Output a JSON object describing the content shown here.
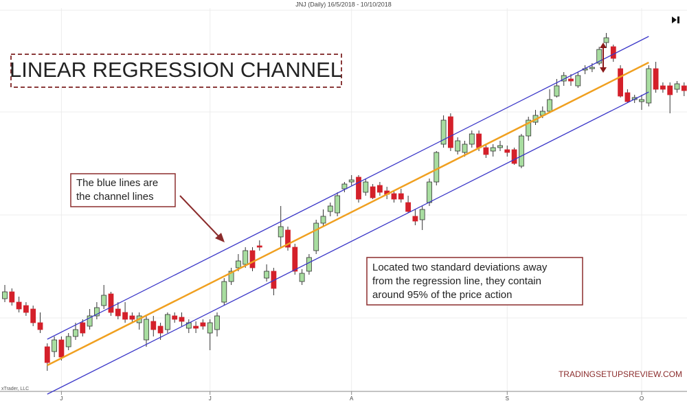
{
  "chart_data": {
    "type": "candlestick",
    "title": "JNJ (Daily)  16/5/2018 - 10/10/2018",
    "heading": "LINEAR REGRESSION CHANNEL",
    "annotations": [
      "The blue lines are",
      "the channel lines",
      "Located two standard deviations away",
      "from the regression line, they contain",
      "around 95% of the price action"
    ],
    "watermark": "TRADINGSETUPSREVIEW.COM",
    "copyright": "xTrader, LLC",
    "up_color": "#a8dda0",
    "down_color": "#d4202a",
    "channel_color": "#3a36c8",
    "regression_color": "#f0a020",
    "ylim": [
      0,
      60
    ],
    "categories": [
      null,
      null,
      null,
      null,
      null,
      null,
      null,
      null,
      "J",
      null,
      null,
      null,
      null,
      null,
      null,
      null,
      null,
      null,
      null,
      null,
      null,
      null,
      null,
      null,
      null,
      null,
      null,
      null,
      null,
      "J",
      null,
      null,
      null,
      null,
      null,
      null,
      null,
      null,
      null,
      null,
      null,
      null,
      null,
      null,
      null,
      null,
      null,
      null,
      null,
      "A",
      null,
      null,
      null,
      null,
      null,
      null,
      null,
      null,
      null,
      null,
      null,
      null,
      null,
      null,
      null,
      null,
      null,
      null,
      null,
      null,
      null,
      "S",
      null,
      null,
      null,
      null,
      null,
      null,
      null,
      null,
      null,
      null,
      null,
      null,
      null,
      null,
      null,
      null,
      null,
      null,
      "O",
      null,
      null,
      null,
      null,
      null,
      null
    ],
    "open": [
      16.5,
      17.5,
      16,
      15.5,
      15,
      13,
      9.5,
      8.8,
      10.5,
      9.5,
      11,
      13,
      12.5,
      14,
      15.5,
      17.2,
      15,
      14.5,
      14,
      13,
      10.5,
      13.2,
      12.5,
      12,
      14,
      13.8,
      12.2,
      12.5,
      13,
      11.5,
      12,
      16,
      19,
      21,
      21.5,
      23.5,
      24.2,
      19.5,
      20.5,
      25.5,
      26.5,
      24,
      19,
      20.5,
      23.5,
      27.5,
      29.2,
      29,
      32.5,
      33.5,
      34.2,
      32,
      32.8,
      33,
      32.2,
      31.8,
      31.8,
      30.5,
      28.5,
      28,
      30.5,
      33.5,
      39,
      43,
      38,
      37.8,
      39,
      40.5,
      38.5,
      38,
      38.5,
      38.2,
      38.2,
      35.8,
      40.2,
      42.2,
      43.2,
      43.8,
      46,
      48.2,
      48.5,
      47.5,
      49.8,
      50,
      50.8,
      53.8,
      53.2,
      50,
      46.5,
      45.5,
      45.2,
      45,
      50,
      47.5,
      47.5,
      47,
      47.5
    ],
    "high": [
      18.5,
      18,
      16.8,
      16,
      15.5,
      14.5,
      10,
      11,
      11,
      11.5,
      13,
      13.5,
      15,
      16,
      18.5,
      17.5,
      16,
      16,
      14.5,
      14.5,
      14,
      14,
      13,
      14.5,
      14.5,
      14.5,
      13.5,
      13.2,
      13.5,
      13.5,
      14.5,
      19.5,
      21,
      23,
      24,
      24,
      25,
      21.5,
      21,
      30,
      27,
      24.5,
      20.8,
      23,
      28,
      29.5,
      30.5,
      32,
      33.5,
      34.5,
      34.5,
      34,
      33.2,
      33.5,
      32.8,
      32.2,
      32.5,
      31.5,
      29.5,
      30,
      34,
      38,
      43.2,
      43.5,
      40,
      39.5,
      41,
      41,
      39,
      39,
      39.5,
      38.8,
      38.5,
      40.5,
      43,
      44,
      44.5,
      47,
      48.5,
      49.5,
      49.2,
      49.5,
      50.5,
      50.8,
      53.2,
      55.2,
      53.5,
      50.5,
      47,
      46.2,
      46.2,
      50.5,
      51,
      48,
      48,
      48.2,
      48
    ],
    "low": [
      16,
      15.5,
      14.5,
      14,
      12.5,
      11.5,
      6,
      8,
      7.5,
      9,
      10.5,
      11,
      12,
      13.5,
      15,
      14,
      13.5,
      13,
      13,
      12,
      9.5,
      11,
      10.5,
      11.5,
      13,
      12.5,
      11.5,
      11.5,
      12,
      9,
      11,
      15.5,
      18.5,
      20.5,
      21,
      20.5,
      23.5,
      19,
      17,
      24,
      23.5,
      20,
      18.5,
      20,
      23,
      27,
      28.5,
      28.5,
      32,
      33,
      30.5,
      31.5,
      31,
      31.5,
      31,
      30.5,
      30.5,
      29,
      27.2,
      26.5,
      30,
      33,
      38.5,
      38,
      37.5,
      37.2,
      38.5,
      38,
      37,
      37.2,
      38,
      37.2,
      36,
      35.5,
      39.5,
      41.8,
      42.8,
      43.5,
      45.8,
      47.5,
      47.5,
      47.2,
      49.2,
      49.5,
      50.5,
      53,
      51,
      45.8,
      45,
      45,
      44,
      44.5,
      46.5,
      46.5,
      43.5,
      46.5,
      46
    ],
    "close": [
      17.5,
      16,
      15,
      14.5,
      13,
      12,
      7.2,
      10.5,
      8,
      11,
      12,
      11.5,
      14,
      15.2,
      17,
      14.5,
      14,
      13.5,
      13.5,
      14,
      13.5,
      12,
      11.5,
      14.2,
      13.5,
      13.2,
      13,
      12.2,
      12.5,
      13,
      14,
      19,
      20.5,
      22,
      23.5,
      21,
      24,
      20.5,
      18,
      27,
      24,
      20.5,
      20.2,
      22.5,
      27.5,
      28.5,
      30,
      31.5,
      33.2,
      33.8,
      31,
      33.5,
      31.2,
      32,
      31.7,
      31,
      31,
      29.2,
      27.8,
      29.5,
      33.5,
      37.8,
      42.5,
      38.5,
      39.5,
      39,
      40.5,
      38.5,
      37.5,
      38.5,
      38.8,
      37.8,
      36.2,
      40.2,
      42.5,
      43.2,
      43.8,
      45.5,
      47.5,
      49,
      48.2,
      49,
      50,
      50.2,
      52.8,
      54.5,
      51.5,
      46,
      45.2,
      45.8,
      45.5,
      50,
      47,
      47,
      46.2,
      47.8,
      46.8
    ],
    "channel": {
      "index": [
        6,
        91
      ],
      "upper": [
        10.6,
        54.7
      ],
      "middle": [
        6.8,
        50.9
      ],
      "lower": [
        2.6,
        46.6
      ]
    }
  }
}
